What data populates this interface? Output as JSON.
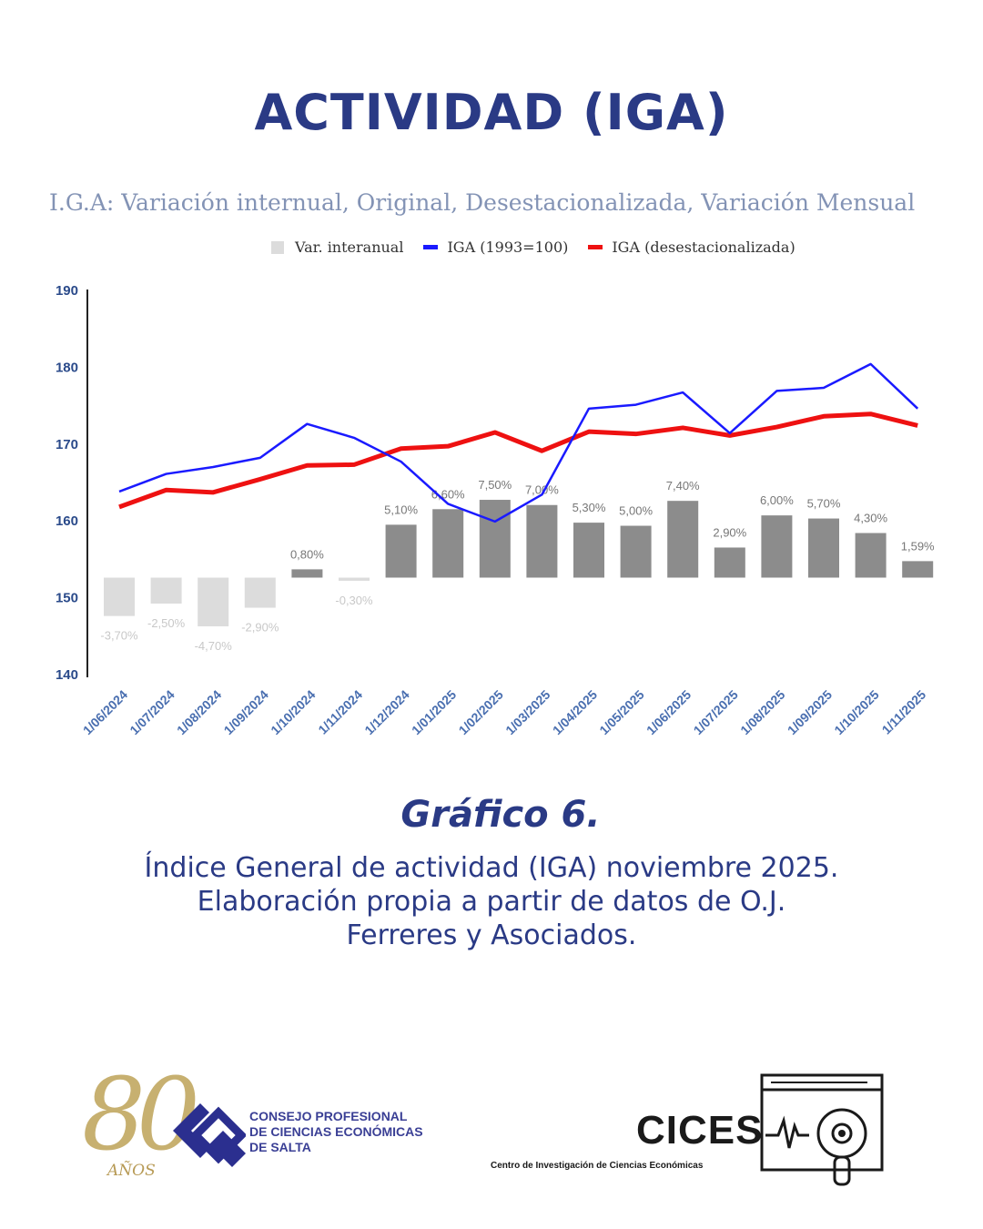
{
  "page_title": "ACTIVIDAD (IGA)",
  "caption": {
    "title": "Gráfico 6.",
    "line1": "Índice General de actividad (IGA) noviembre 2025.",
    "line2": "Elaboración propia a partir de datos de O.J.",
    "line3": "Ferreres y Asociados."
  },
  "logos": {
    "cpce_anniversary": "80",
    "cpce_anos": "AÑOS",
    "cpce_line1": "CONSEJO PROFESIONAL",
    "cpce_line2": "DE CIENCIAS ECONÓMICAS",
    "cpce_line3": "DE SALTA",
    "cices_name": "CICES",
    "cices_full": "Centro de Investigación de Ciencias Económicas"
  },
  "chart_data": {
    "type": "bar+line",
    "title": "I.G.A: Variación internual, Original, Desestacionalizada, Variación Mensual",
    "legend": [
      "Var. interanual",
      "IGA (1993=100)",
      "IGA (desestacionalizada)"
    ],
    "colors": {
      "bars_positive": "#8c8c8c",
      "bars_negative": "#dcdcdc",
      "iga": "#1a1aff",
      "iga_desest": "#ee1111",
      "axis_text": "#2a4a8a"
    },
    "categories": [
      "1/06/2024",
      "1/07/2024",
      "1/08/2024",
      "1/09/2024",
      "1/10/2024",
      "1/11/2024",
      "1/12/2024",
      "1/01/2025",
      "1/02/2025",
      "1/03/2025",
      "1/04/2025",
      "1/05/2025",
      "1/06/2025",
      "1/07/2025",
      "1/08/2025",
      "1/09/2025",
      "1/10/2025",
      "1/11/2025"
    ],
    "ylim": [
      140,
      190
    ],
    "yticks": [
      140,
      150,
      160,
      170,
      180,
      190
    ],
    "bar_zero_level": 152.5,
    "bar_scale_per_pct": 1.35,
    "series": [
      {
        "name": "Var. interanual",
        "kind": "bar",
        "values": [
          -3.7,
          -2.5,
          -4.7,
          -2.9,
          0.8,
          -0.3,
          5.1,
          6.6,
          7.5,
          7.0,
          5.3,
          5.0,
          7.4,
          2.9,
          6.0,
          5.7,
          4.3,
          1.59
        ],
        "labels": [
          "-3,70%",
          "-2,50%",
          "-4,70%",
          "-2,90%",
          "0,80%",
          "-0,30%",
          "5,10%",
          "6,60%",
          "7,50%",
          "7,00%",
          "5,30%",
          "5,00%",
          "7,40%",
          "2,90%",
          "6,00%",
          "5,70%",
          "4,30%",
          "1,59%"
        ]
      },
      {
        "name": "IGA (1993=100)",
        "kind": "line",
        "values": [
          163.7,
          166.0,
          166.9,
          168.1,
          172.5,
          170.7,
          167.6,
          162.1,
          159.8,
          163.3,
          174.5,
          175.0,
          176.6,
          171.3,
          176.8,
          177.2,
          180.3,
          174.5
        ]
      },
      {
        "name": "IGA (desestacionalizada)",
        "kind": "line",
        "values": [
          161.7,
          163.9,
          163.6,
          165.3,
          167.1,
          167.2,
          169.3,
          169.6,
          171.4,
          169.0,
          171.5,
          171.2,
          172.0,
          171.0,
          172.1,
          173.5,
          173.8,
          172.3
        ]
      }
    ]
  }
}
